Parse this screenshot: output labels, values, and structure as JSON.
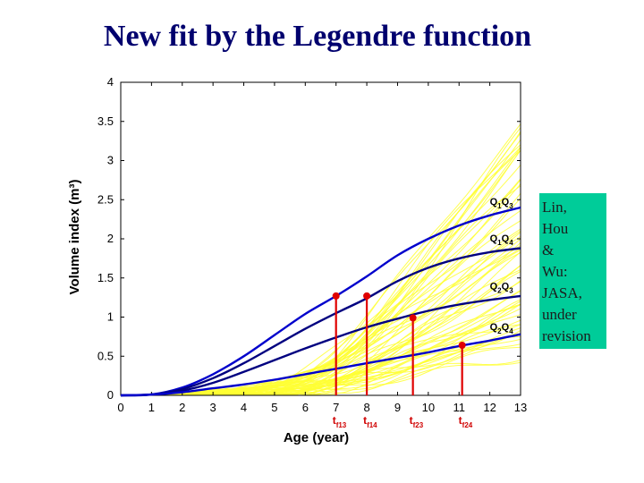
{
  "title": "New fit by the Legendre function",
  "note": {
    "lines": [
      "Lin,",
      "Hou",
      "&",
      "Wu:",
      "JASA,",
      "under",
      "revision"
    ],
    "bg_color": "#00cc99"
  },
  "chart_data": {
    "type": "line",
    "xlabel": "Age (year)",
    "ylabel": "Volume index (m³)",
    "xlim": [
      0,
      13
    ],
    "ylim": [
      0,
      4
    ],
    "xticks": [
      0,
      1,
      2,
      3,
      4,
      5,
      6,
      7,
      8,
      9,
      10,
      11,
      12,
      13
    ],
    "yticks": [
      0,
      0.5,
      1,
      1.5,
      2,
      2.5,
      3,
      3.5,
      4
    ],
    "ytick_labels": [
      "0",
      "0.5",
      "1",
      "1.5",
      "2",
      "2.5",
      "3",
      "3.5",
      "4"
    ],
    "grid": false,
    "background_curves": {
      "color": "#ffff33",
      "count": 60,
      "final_value_range": [
        0.45,
        3.45
      ]
    },
    "series": [
      {
        "quantiles": [
          "1",
          "3"
        ],
        "color": "#0000cc",
        "x": [
          0,
          1,
          2,
          3,
          4,
          5,
          6,
          7,
          8,
          9,
          10,
          11,
          12,
          13
        ],
        "y": [
          0,
          0.01,
          0.1,
          0.27,
          0.5,
          0.77,
          1.04,
          1.27,
          1.52,
          1.79,
          2.0,
          2.17,
          2.3,
          2.4
        ]
      },
      {
        "quantiles": [
          "1",
          "4"
        ],
        "color": "#000080",
        "x": [
          0,
          1,
          2,
          3,
          4,
          5,
          6,
          7,
          8,
          9,
          10,
          11,
          12,
          13
        ],
        "y": [
          0,
          0.01,
          0.08,
          0.22,
          0.41,
          0.63,
          0.85,
          1.05,
          1.24,
          1.46,
          1.63,
          1.75,
          1.83,
          1.88
        ]
      },
      {
        "quantiles": [
          "2",
          "3"
        ],
        "color": "#000080",
        "x": [
          0,
          1,
          2,
          3,
          4,
          5,
          6,
          7,
          8,
          9,
          10,
          11,
          12,
          13
        ],
        "y": [
          0,
          0.01,
          0.06,
          0.16,
          0.3,
          0.45,
          0.6,
          0.74,
          0.87,
          0.98,
          1.08,
          1.16,
          1.22,
          1.27
        ]
      },
      {
        "quantiles": [
          "2",
          "4"
        ],
        "color": "#0000cc",
        "x": [
          0,
          1,
          2,
          3,
          4,
          5,
          6,
          7,
          8,
          9,
          10,
          11,
          12,
          13
        ],
        "y": [
          0,
          0.01,
          0.04,
          0.09,
          0.14,
          0.2,
          0.27,
          0.34,
          0.41,
          0.48,
          0.55,
          0.63,
          0.7,
          0.78
        ]
      }
    ],
    "markers": [
      {
        "label": "t",
        "sub": "f13",
        "x": 7.0,
        "y": 1.27
      },
      {
        "label": "t",
        "sub": "f14",
        "x": 8.0,
        "y": 1.27
      },
      {
        "label": "t",
        "sub": "f23",
        "x": 9.5,
        "y": 0.99
      },
      {
        "label": "t",
        "sub": "f24",
        "x": 11.1,
        "y": 0.64
      }
    ],
    "marker_color": "#e00000"
  }
}
